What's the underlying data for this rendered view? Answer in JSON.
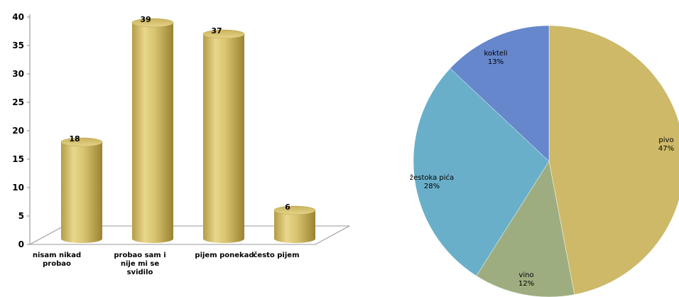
{
  "chart_data": [
    {
      "type": "bar",
      "categories": [
        "nisam nikad probao",
        "probao sam i nije mi se svidilo",
        "pijem ponekad",
        "često pijem"
      ],
      "category_lines": [
        [
          "nisam nikad",
          "probao"
        ],
        [
          "probao sam i",
          "nije mi se",
          "svidilo"
        ],
        [
          "pijem ponekad"
        ],
        [
          "često pijem"
        ]
      ],
      "values": [
        18,
        39,
        37,
        6
      ],
      "ylim": [
        0,
        40
      ],
      "yticks": [
        0,
        5,
        10,
        15,
        20,
        25,
        30,
        35,
        40
      ],
      "data_labels": [
        "18",
        "39",
        "37",
        "6"
      ],
      "grid": false,
      "bar_color": "#D4BE6A",
      "style": "3d-cylinder"
    },
    {
      "type": "pie",
      "slices": [
        {
          "label": "pivo",
          "value": 47,
          "percent_label": "47%",
          "color": "#CDB968"
        },
        {
          "label": "vino",
          "value": 12,
          "percent_label": "12%",
          "color": "#9DAD80"
        },
        {
          "label": "žestoka pića",
          "value": 28,
          "percent_label": "28%",
          "color": "#6AAFC9"
        },
        {
          "label": "kokteli",
          "value": 13,
          "percent_label": "13%",
          "color": "#6687CC"
        }
      ],
      "start_angle_deg": 0,
      "direction": "clockwise"
    }
  ]
}
